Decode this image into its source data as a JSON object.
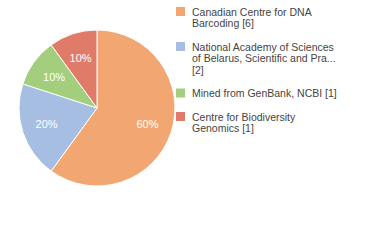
{
  "chart_data": {
    "type": "pie",
    "categories": [
      "Canadian Centre for DNA Barcoding [6]",
      "National Academy of Sciences of Belarus, Scientific and Pra... [2]",
      "Mined from GenBank, NCBI [1]",
      "Centre for Biodiversity Genomics [1]"
    ],
    "values": [
      60,
      20,
      10,
      10
    ],
    "value_labels": [
      "60%",
      "20%",
      "10%",
      "10%"
    ],
    "colors": [
      "#f2a772",
      "#a6bee2",
      "#a2ce7d",
      "#e17b69"
    ],
    "data_labels": true,
    "legend": "right"
  }
}
